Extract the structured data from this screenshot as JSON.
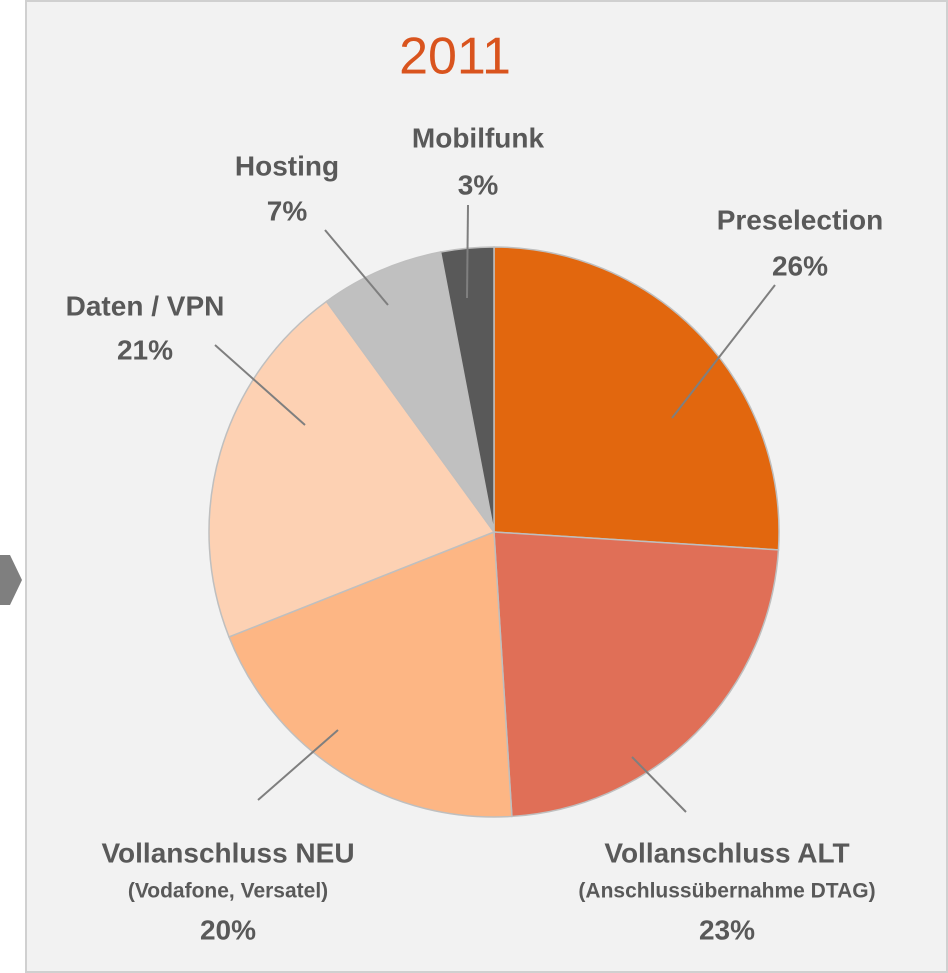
{
  "chart_data": {
    "type": "pie",
    "title": "2011",
    "categories": [
      "Preselection",
      "Vollanschluss ALT",
      "Vollanschluss NEU",
      "Daten / VPN",
      "Hosting",
      "Mobilfunk"
    ],
    "category_notes": [
      null,
      "(Anschlussübernahme DTAG)",
      "(Vodafone, Versatel)",
      null,
      null,
      null
    ],
    "values": [
      26,
      23,
      20,
      21,
      7,
      3
    ],
    "value_labels": [
      "26%",
      "23%",
      "20%",
      "21%",
      "7%",
      "3%"
    ],
    "colors": [
      "#e2670e",
      "#e06f57",
      "#fdb684",
      "#fdd1b3",
      "#c0c0c0",
      "#595959"
    ]
  }
}
